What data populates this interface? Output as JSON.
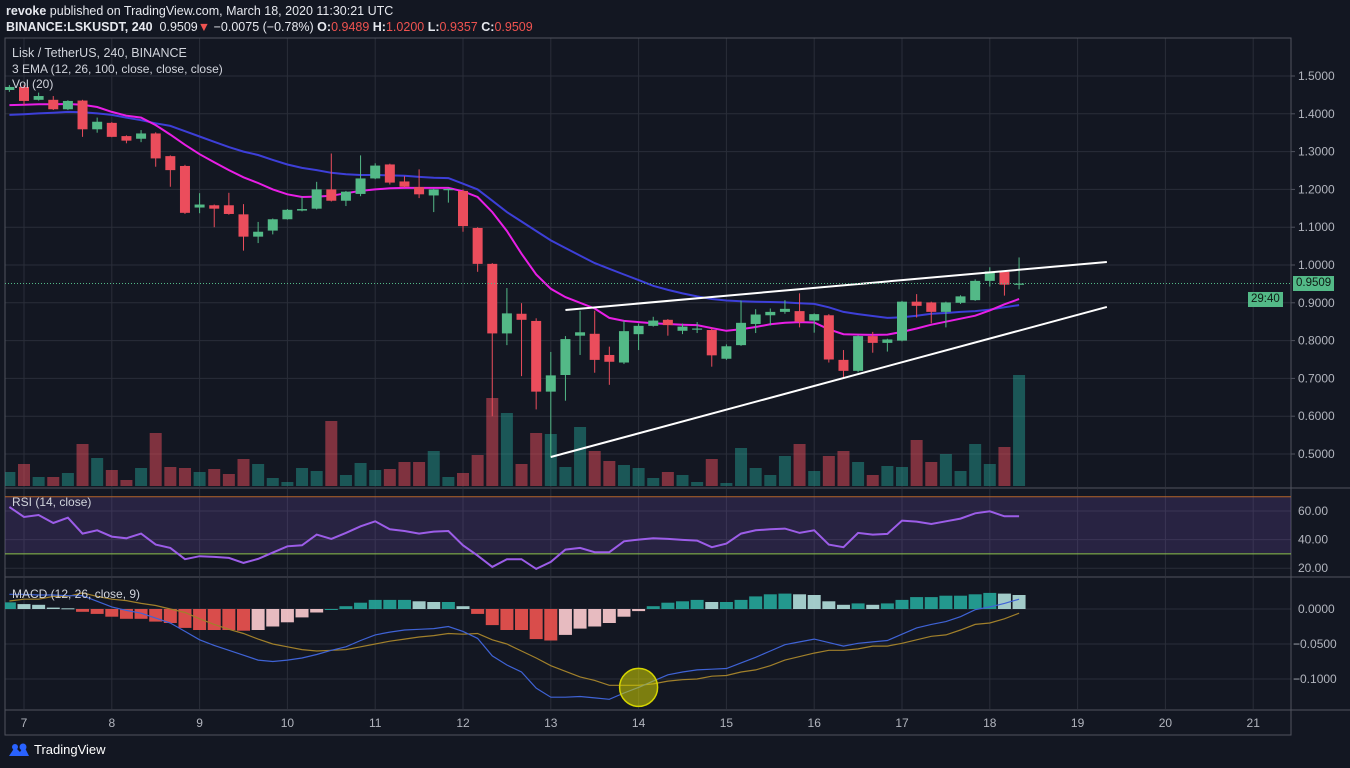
{
  "header": {
    "author": "revoke",
    "published": "published on TradingView.com, March 18, 2020 11:30:21 UTC",
    "symbol": "BINANCE:LSKUSDT, 240",
    "last": "0.9509",
    "direction_icon": "triangle-down-icon",
    "change": "−0.0075 (−0.78%)",
    "o_label": "O:",
    "o": "0.9489",
    "h_label": "H:",
    "h": "1.0200",
    "l_label": "L:",
    "l": "0.9357",
    "c_label": "C:",
    "c": "0.9509"
  },
  "legends": {
    "main": "Lisk / TetherUS, 240, BINANCE",
    "ema": "3 EMA (12, 26, 100, close, close, close)",
    "vol": "Vol (20)",
    "rsi": "RSI (14, close)",
    "macd": "MACD (12, 26, close, 9)"
  },
  "price_label": "0.9509",
  "countdown": "29:40",
  "footer": {
    "brand": "TradingView",
    "logo_icon": "tradingview-logo-icon"
  },
  "colors": {
    "background": "#131722",
    "up": "#53b987",
    "down": "#eb4d5c",
    "ema12": "#e91ee6",
    "ema26": "#3d3fd8",
    "trendline": "#ffffff",
    "rsi_line": "#9c5de8",
    "rsi_band": "#7e57c2",
    "rsi_upper": "#b5652b",
    "rsi_lower": "#8bc34a",
    "macd_line": "#3f63d6",
    "signal_line": "#a1802b",
    "hist_up_strong": "#26a69a",
    "hist_up_weak": "#b2dfdb",
    "hist_down_strong": "#ef5350",
    "hist_down_weak": "#ffcdd2",
    "highlight": "#d4d400"
  },
  "chart_data": [
    {
      "type": "candlestick",
      "x_ticks": [
        "7",
        "8",
        "9",
        "10",
        "11",
        "12",
        "13",
        "14",
        "15",
        "16",
        "17",
        "18",
        "19",
        "20",
        "21"
      ],
      "y_ticks": [
        "1.5000",
        "1.4000",
        "1.3000",
        "1.2000",
        "1.1000",
        "1.0000",
        "0.9000",
        "0.8000",
        "0.7000",
        "0.6000",
        "0.5000"
      ],
      "ylim": [
        0.413,
        1.6
      ],
      "last_price": 0.9509,
      "candles_format": [
        "time",
        "open",
        "high",
        "low",
        "close",
        "volume"
      ],
      "candles": [
        [
          "2020-03-06 20:00",
          1.463,
          1.476,
          1.458,
          1.471,
          14
        ],
        [
          "2020-03-07 00:00",
          1.471,
          1.476,
          1.423,
          1.434,
          22
        ],
        [
          "2020-03-07 04:00",
          1.437,
          1.456,
          1.435,
          1.447,
          9
        ],
        [
          "2020-03-07 08:00",
          1.437,
          1.447,
          1.41,
          1.412,
          9
        ],
        [
          "2020-03-07 12:00",
          1.412,
          1.436,
          1.41,
          1.434,
          13
        ],
        [
          "2020-03-07 16:00",
          1.435,
          1.437,
          1.339,
          1.359,
          42
        ],
        [
          "2020-03-07 20:00",
          1.359,
          1.39,
          1.35,
          1.379,
          28
        ],
        [
          "2020-03-08 00:00",
          1.376,
          1.378,
          1.338,
          1.339,
          16
        ],
        [
          "2020-03-08 04:00",
          1.341,
          1.343,
          1.322,
          1.329,
          6
        ],
        [
          "2020-03-08 08:00",
          1.334,
          1.357,
          1.325,
          1.348,
          18
        ],
        [
          "2020-03-08 12:00",
          1.348,
          1.351,
          1.26,
          1.282,
          53
        ],
        [
          "2020-03-08 16:00",
          1.288,
          1.29,
          1.207,
          1.251,
          19
        ],
        [
          "2020-03-08 20:00",
          1.262,
          1.265,
          1.135,
          1.138,
          18
        ],
        [
          "2020-03-09 00:00",
          1.152,
          1.19,
          1.137,
          1.16,
          14
        ],
        [
          "2020-03-09 04:00",
          1.158,
          1.16,
          1.1,
          1.149,
          17
        ],
        [
          "2020-03-09 08:00",
          1.158,
          1.191,
          1.133,
          1.135,
          12
        ],
        [
          "2020-03-09 12:00",
          1.134,
          1.161,
          1.038,
          1.075,
          27
        ],
        [
          "2020-03-09 16:00",
          1.075,
          1.114,
          1.058,
          1.088,
          22
        ],
        [
          "2020-03-09 20:00",
          1.091,
          1.123,
          1.081,
          1.121,
          8
        ],
        [
          "2020-03-10 00:00",
          1.121,
          1.148,
          1.12,
          1.146,
          4
        ],
        [
          "2020-03-10 04:00",
          1.144,
          1.181,
          1.142,
          1.148,
          18
        ],
        [
          "2020-03-10 08:00",
          1.149,
          1.22,
          1.147,
          1.2,
          15
        ],
        [
          "2020-03-10 12:00",
          1.2,
          1.295,
          1.168,
          1.17,
          65
        ],
        [
          "2020-03-10 16:00",
          1.17,
          1.196,
          1.156,
          1.194,
          11
        ],
        [
          "2020-03-10 20:00",
          1.188,
          1.29,
          1.182,
          1.229,
          23
        ],
        [
          "2020-03-11 00:00",
          1.229,
          1.269,
          1.227,
          1.263,
          16
        ],
        [
          "2020-03-11 04:00",
          1.266,
          1.268,
          1.213,
          1.218,
          17
        ],
        [
          "2020-03-11 08:00",
          1.221,
          1.235,
          1.205,
          1.207,
          24
        ],
        [
          "2020-03-11 12:00",
          1.206,
          1.253,
          1.177,
          1.187,
          24
        ],
        [
          "2020-03-11 16:00",
          1.184,
          1.202,
          1.14,
          1.2,
          35
        ],
        [
          "2020-03-11 20:00",
          1.199,
          1.203,
          1.165,
          1.201,
          9
        ],
        [
          "2020-03-12 00:00",
          1.196,
          1.2,
          1.088,
          1.103,
          13
        ],
        [
          "2020-03-12 04:00",
          1.098,
          1.1,
          0.982,
          1.003,
          31
        ],
        [
          "2020-03-12 08:00",
          1.003,
          1.005,
          0.6,
          0.819,
          88
        ],
        [
          "2020-03-12 12:00",
          0.819,
          0.939,
          0.788,
          0.872,
          73
        ],
        [
          "2020-03-12 16:00",
          0.871,
          0.899,
          0.706,
          0.855,
          22
        ],
        [
          "2020-03-12 20:00",
          0.852,
          0.859,
          0.618,
          0.665,
          53
        ],
        [
          "2020-03-13 00:00",
          0.665,
          0.77,
          0.49,
          0.708,
          52
        ],
        [
          "2020-03-13 04:00",
          0.709,
          0.812,
          0.641,
          0.804,
          19
        ],
        [
          "2020-03-13 08:00",
          0.813,
          0.879,
          0.762,
          0.822,
          59
        ],
        [
          "2020-03-13 12:00",
          0.818,
          0.879,
          0.715,
          0.749,
          35
        ],
        [
          "2020-03-13 16:00",
          0.762,
          0.784,
          0.683,
          0.744,
          25
        ],
        [
          "2020-03-13 20:00",
          0.742,
          0.853,
          0.738,
          0.825,
          21
        ],
        [
          "2020-03-14 00:00",
          0.817,
          0.845,
          0.775,
          0.839,
          18
        ],
        [
          "2020-03-14 04:00",
          0.839,
          0.863,
          0.837,
          0.853,
          8
        ],
        [
          "2020-03-14 08:00",
          0.855,
          0.857,
          0.813,
          0.841,
          14
        ],
        [
          "2020-03-14 12:00",
          0.826,
          0.845,
          0.817,
          0.837,
          11
        ],
        [
          "2020-03-14 16:00",
          0.83,
          0.849,
          0.82,
          0.832,
          4
        ],
        [
          "2020-03-14 20:00",
          0.828,
          0.834,
          0.731,
          0.761,
          27
        ],
        [
          "2020-03-15 00:00",
          0.752,
          0.79,
          0.749,
          0.785,
          3
        ],
        [
          "2020-03-15 04:00",
          0.788,
          0.906,
          0.786,
          0.847,
          38
        ],
        [
          "2020-03-15 08:00",
          0.844,
          0.883,
          0.82,
          0.869,
          18
        ],
        [
          "2020-03-15 12:00",
          0.867,
          0.885,
          0.84,
          0.876,
          11
        ],
        [
          "2020-03-15 16:00",
          0.876,
          0.907,
          0.871,
          0.884,
          30
        ],
        [
          "2020-03-15 20:00",
          0.878,
          0.925,
          0.835,
          0.85,
          42
        ],
        [
          "2020-03-16 00:00",
          0.853,
          0.872,
          0.821,
          0.87,
          15
        ],
        [
          "2020-03-16 04:00",
          0.867,
          0.87,
          0.742,
          0.75,
          30
        ],
        [
          "2020-03-16 08:00",
          0.749,
          0.775,
          0.7,
          0.72,
          35
        ],
        [
          "2020-03-16 12:00",
          0.72,
          0.814,
          0.716,
          0.812,
          24
        ],
        [
          "2020-03-16 16:00",
          0.812,
          0.823,
          0.768,
          0.794,
          11
        ],
        [
          "2020-03-16 20:00",
          0.794,
          0.805,
          0.771,
          0.803,
          20
        ],
        [
          "2020-03-17 00:00",
          0.8,
          0.905,
          0.798,
          0.903,
          19
        ],
        [
          "2020-03-17 04:00",
          0.903,
          0.923,
          0.861,
          0.892,
          46
        ],
        [
          "2020-03-17 08:00",
          0.901,
          0.903,
          0.846,
          0.876,
          24
        ],
        [
          "2020-03-17 12:00",
          0.876,
          0.903,
          0.835,
          0.901,
          32
        ],
        [
          "2020-03-17 16:00",
          0.9,
          0.92,
          0.897,
          0.917,
          15
        ],
        [
          "2020-03-17 20:00",
          0.907,
          0.962,
          0.905,
          0.958,
          42
        ],
        [
          "2020-03-18 00:00",
          0.958,
          0.994,
          0.943,
          0.983,
          22
        ],
        [
          "2020-03-18 04:00",
          0.982,
          0.984,
          0.919,
          0.948,
          39
        ],
        [
          "2020-03-18 08:00",
          0.9489,
          1.02,
          0.9357,
          0.9509,
          111
        ]
      ],
      "ema12": [
        1.423,
        1.424,
        1.425,
        1.425,
        1.426,
        1.424,
        1.418,
        1.405,
        1.395,
        1.39,
        1.37,
        1.345,
        1.318,
        1.293,
        1.272,
        1.251,
        1.232,
        1.217,
        1.2,
        1.187,
        1.18,
        1.181,
        1.183,
        1.19,
        1.196,
        1.2,
        1.203,
        1.204,
        1.204,
        1.204,
        1.204,
        1.195,
        1.18,
        1.14,
        1.09,
        1.03,
        0.975,
        0.937,
        0.915,
        0.9,
        0.885,
        0.86,
        0.852,
        0.849,
        0.846,
        0.844,
        0.842,
        0.841,
        0.833,
        0.826,
        0.83,
        0.836,
        0.843,
        0.847,
        0.849,
        0.848,
        0.83,
        0.817,
        0.816,
        0.815,
        0.816,
        0.823,
        0.832,
        0.842,
        0.85,
        0.858,
        0.866,
        0.88,
        0.896,
        0.91
      ],
      "ema26": [
        1.397,
        1.399,
        1.401,
        1.403,
        1.405,
        1.404,
        1.401,
        1.397,
        1.39,
        1.383,
        1.375,
        1.368,
        1.354,
        1.34,
        1.326,
        1.312,
        1.3,
        1.291,
        1.278,
        1.266,
        1.257,
        1.251,
        1.244,
        1.24,
        1.238,
        1.238,
        1.237,
        1.236,
        1.233,
        1.231,
        1.23,
        1.215,
        1.2,
        1.17,
        1.14,
        1.115,
        1.09,
        1.065,
        1.045,
        1.025,
        1.005,
        0.99,
        0.975,
        0.96,
        0.945,
        0.934,
        0.925,
        0.917,
        0.91,
        0.906,
        0.904,
        0.903,
        0.902,
        0.901,
        0.899,
        0.897,
        0.888,
        0.876,
        0.87,
        0.865,
        0.86,
        0.862,
        0.866,
        0.871,
        0.873,
        0.876,
        0.878,
        0.882,
        0.888,
        0.894
      ],
      "trendlines": [
        {
          "from": [
            "2020-03-13 04:00",
            0.881
          ],
          "to": [
            "2020-03-19 08:00",
            1.008
          ]
        },
        {
          "from": [
            "2020-03-13 00:00",
            0.492
          ],
          "to": [
            "2020-03-19 08:00",
            0.889
          ]
        }
      ]
    },
    {
      "type": "line",
      "y_ticks": [
        "60.00",
        "40.00",
        "20.00"
      ],
      "upper_band": 70,
      "lower_band": 30,
      "values": [
        62.8,
        55.8,
        57.2,
        51.6,
        55.3,
        44.2,
        46.5,
        42.1,
        40.9,
        44.2,
        36.5,
        34.2,
        26.3,
        28.4,
        27.9,
        27.2,
        23.7,
        26.5,
        30.9,
        35.3,
        36.0,
        43.5,
        40.5,
        44.7,
        49.3,
        52.8,
        47.2,
        46.0,
        44.2,
        45.6,
        46.0,
        36.0,
        28.8,
        20.9,
        26.3,
        26.3,
        19.5,
        24.4,
        33.0,
        34.2,
        31.2,
        31.2,
        38.8,
        40.0,
        40.9,
        40.5,
        39.8,
        39.3,
        34.7,
        37.2,
        44.2,
        46.5,
        47.2,
        47.7,
        44.7,
        46.5,
        36.5,
        34.7,
        44.7,
        43.5,
        44.0,
        53.3,
        52.6,
        50.9,
        52.8,
        54.7,
        58.4,
        59.8,
        56.3,
        56.3
      ]
    },
    {
      "type": "bar",
      "y_ticks": [
        "0.0000",
        "−0.0500",
        "−0.1000"
      ],
      "histogram": [
        0.0095,
        0.007,
        0.006,
        0.002,
        0.001,
        -0.004,
        -0.007,
        -0.011,
        -0.014,
        -0.014,
        -0.018,
        -0.02,
        -0.027,
        -0.03,
        -0.03,
        -0.03,
        -0.031,
        -0.03,
        -0.025,
        -0.019,
        -0.012,
        -0.005,
        0.0,
        0.004,
        0.009,
        0.013,
        0.013,
        0.013,
        0.011,
        0.01,
        0.01,
        0.004,
        -0.007,
        -0.023,
        -0.03,
        -0.03,
        -0.043,
        -0.045,
        -0.037,
        -0.028,
        -0.025,
        -0.02,
        -0.011,
        -0.003,
        0.004,
        0.009,
        0.011,
        0.013,
        0.01,
        0.01,
        0.013,
        0.018,
        0.021,
        0.022,
        0.021,
        0.02,
        0.011,
        0.006,
        0.008,
        0.006,
        0.008,
        0.013,
        0.017,
        0.017,
        0.019,
        0.019,
        0.021,
        0.023,
        0.022,
        0.02
      ],
      "macd": [
        0.021,
        0.021,
        0.02,
        0.02,
        0.019,
        0.019,
        0.011,
        0.003,
        -0.002,
        -0.006,
        -0.013,
        -0.02,
        -0.032,
        -0.044,
        -0.052,
        -0.059,
        -0.066,
        -0.073,
        -0.075,
        -0.073,
        -0.07,
        -0.065,
        -0.059,
        -0.054,
        -0.045,
        -0.037,
        -0.033,
        -0.03,
        -0.029,
        -0.028,
        -0.025,
        -0.032,
        -0.042,
        -0.067,
        -0.08,
        -0.09,
        -0.113,
        -0.126,
        -0.126,
        -0.125,
        -0.127,
        -0.129,
        -0.12,
        -0.112,
        -0.103,
        -0.094,
        -0.09,
        -0.087,
        -0.086,
        -0.085,
        -0.077,
        -0.069,
        -0.06,
        -0.051,
        -0.047,
        -0.043,
        -0.048,
        -0.053,
        -0.049,
        -0.047,
        -0.045,
        -0.036,
        -0.027,
        -0.022,
        -0.018,
        -0.011,
        -0.001,
        0.003,
        0.008,
        0.014
      ],
      "signal": [
        0.0115,
        0.014,
        0.014,
        0.018,
        0.018,
        0.023,
        0.018,
        0.014,
        0.012,
        0.008,
        0.005,
        0.0,
        -0.005,
        -0.014,
        -0.022,
        -0.029,
        -0.035,
        -0.043,
        -0.05,
        -0.054,
        -0.058,
        -0.06,
        -0.059,
        -0.058,
        -0.054,
        -0.05,
        -0.046,
        -0.043,
        -0.04,
        -0.038,
        -0.035,
        -0.036,
        -0.035,
        -0.044,
        -0.05,
        -0.06,
        -0.07,
        -0.081,
        -0.089,
        -0.097,
        -0.102,
        -0.109,
        -0.109,
        -0.109,
        -0.107,
        -0.103,
        -0.101,
        -0.1,
        -0.096,
        -0.095,
        -0.09,
        -0.087,
        -0.081,
        -0.073,
        -0.068,
        -0.063,
        -0.059,
        -0.059,
        -0.057,
        -0.053,
        -0.053,
        -0.049,
        -0.044,
        -0.039,
        -0.037,
        -0.03,
        -0.022,
        -0.02,
        -0.014,
        -0.006
      ],
      "highlight": {
        "time": "2020-03-14 00:00",
        "value": -0.112
      }
    }
  ]
}
